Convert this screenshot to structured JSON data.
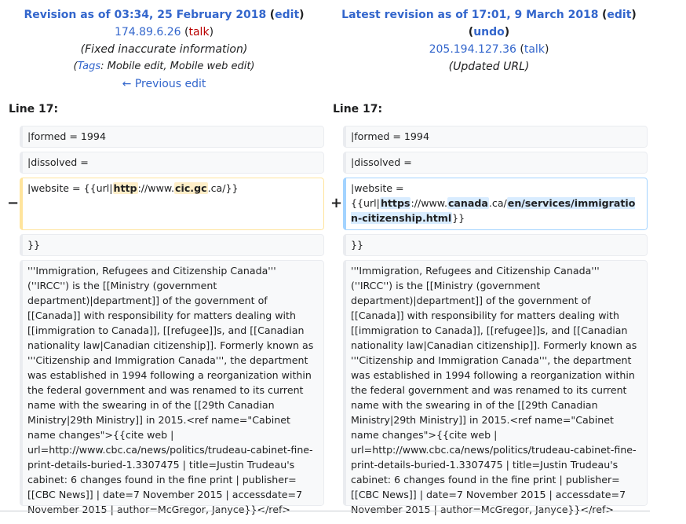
{
  "left_header": {
    "title": "Revision as of 03:34, 25 February 2018",
    "edit": "edit",
    "ip": "174.89.6.26",
    "talk": "talk",
    "summary": "(Fixed inaccurate information)",
    "tags_label": "Tags",
    "tags_value": ": Mobile edit, Mobile web edit)",
    "prev": "← Previous edit"
  },
  "right_header": {
    "title": "Latest revision as of 17:01, 9 March 2018",
    "edit": "edit",
    "undo": "undo",
    "ip": "205.194.127.36",
    "talk": "talk",
    "summary": "(Updated URL)"
  },
  "line_label": "Line 17:",
  "rows": {
    "formed": "|formed = 1994",
    "dissolved": "|dissolved =",
    "close": "}}",
    "paragraph": "'''Immigration, Refugees and Citizenship Canada''' (''IRCC'') is the [[Ministry (government department)|department]] of the government of [[Canada]] with responsibility for matters dealing with [[immigration to Canada]], [[refugee]]s, and [[Canadian nationality law|Canadian citizenship]]. Formerly known as '''Citizenship and Immigration Canada''', the department was established in 1994 following a reorganization within the federal government and was renamed to its current name with the swearing in of the [[29th Canadian Ministry|29th Ministry]] in 2015.<ref name=\"Cabinet name changes\">{{cite web | url=http://www.cbc.ca/news/politics/trudeau-cabinet-fine-print-details-buried-1.3307475 | title=Justin Trudeau's cabinet: 6 changes found in the fine print | publisher=[[CBC News]] | date=7 November 2015 | accessdate=7 November 2015 | author=McGregor, Janyce}}</ref>"
  },
  "deleted_line": {
    "marker": "−",
    "p1": "|website = {{url|",
    "h1": "http",
    "p2": "://www.",
    "h2": "cic.gc",
    "p3": ".ca/}}"
  },
  "added_line": {
    "marker": "+",
    "p1": "|website = {{url|",
    "h1": "https",
    "p2": "://www.",
    "h2": "canada",
    "p3": ".ca/",
    "h3": "en/services/immigration-citizenship.html",
    "p4": "}}"
  }
}
